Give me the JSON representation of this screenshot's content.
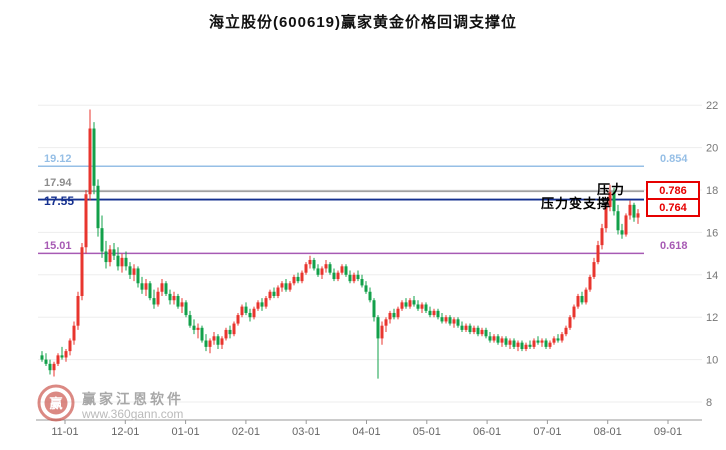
{
  "title": "海立股份(600619)赢家黄金价格回调支撑位",
  "annotations": {
    "pressure": "压力",
    "pressure_support": "压力变支撑"
  },
  "levels": [
    {
      "price": "19.12",
      "value": 19.12,
      "ratio": "0.854",
      "color": "#96bfe6",
      "boxed": false
    },
    {
      "price": "17.94",
      "value": 17.94,
      "ratio": "0.786",
      "color": "#a0a0a0",
      "boxed": true
    },
    {
      "price": "17.55",
      "value": 17.55,
      "ratio": "0.764",
      "color": "#15308f",
      "boxed": true
    },
    {
      "price": "15.01",
      "value": 15.01,
      "ratio": "0.618",
      "color": "#a75ab4",
      "boxed": false
    }
  ],
  "watermark": {
    "brand": "赢家江恩软件",
    "url": "www.360gann.com",
    "logo_glyph": "赢"
  },
  "chart_data": {
    "type": "candlestick",
    "title": "海立股份(600619)赢家黄金价格回调支撑位",
    "symbol": "海立股份",
    "code": "600619",
    "x_labels": [
      "11-01",
      "12-01",
      "01-01",
      "02-01",
      "03-01",
      "04-01",
      "05-01",
      "06-01",
      "07-01",
      "08-01",
      "09-01"
    ],
    "y_ticks": [
      22,
      20,
      18,
      16,
      14,
      12,
      10,
      8
    ],
    "ylim": [
      8,
      24
    ],
    "grid": true,
    "up_color": "#e8352e",
    "down_color": "#12a04a",
    "support_levels": [
      {
        "ratio": 0.854,
        "price": 19.12
      },
      {
        "ratio": 0.786,
        "price": 17.94
      },
      {
        "ratio": 0.764,
        "price": 17.55
      },
      {
        "ratio": 0.618,
        "price": 15.01
      }
    ],
    "candles": [
      [
        10.2,
        10.4,
        9.9,
        10.0
      ],
      [
        10.0,
        10.3,
        9.7,
        9.8
      ],
      [
        9.8,
        10.0,
        9.3,
        9.5
      ],
      [
        9.5,
        9.9,
        9.2,
        9.8
      ],
      [
        9.8,
        10.3,
        9.7,
        10.2
      ],
      [
        10.2,
        10.6,
        10.0,
        10.1
      ],
      [
        10.1,
        10.5,
        9.9,
        10.4
      ],
      [
        10.4,
        11.0,
        10.2,
        10.9
      ],
      [
        10.9,
        11.8,
        10.7,
        11.6
      ],
      [
        11.6,
        13.2,
        11.4,
        13.0
      ],
      [
        13.0,
        15.5,
        12.8,
        15.3
      ],
      [
        15.3,
        18.0,
        15.0,
        17.8
      ],
      [
        17.8,
        21.8,
        17.5,
        20.9
      ],
      [
        20.9,
        21.2,
        17.8,
        18.2
      ],
      [
        18.2,
        18.5,
        15.8,
        16.2
      ],
      [
        16.2,
        16.8,
        14.8,
        15.1
      ],
      [
        15.1,
        15.6,
        14.3,
        14.6
      ],
      [
        14.6,
        15.4,
        14.4,
        15.2
      ],
      [
        15.2,
        15.5,
        14.7,
        14.9
      ],
      [
        14.9,
        15.3,
        14.2,
        14.4
      ],
      [
        14.4,
        15.0,
        14.1,
        14.8
      ],
      [
        14.8,
        15.1,
        14.2,
        14.4
      ],
      [
        14.4,
        14.6,
        13.8,
        14.0
      ],
      [
        14.0,
        14.5,
        13.7,
        14.3
      ],
      [
        14.3,
        14.4,
        13.4,
        13.6
      ],
      [
        13.6,
        13.9,
        13.1,
        13.3
      ],
      [
        13.3,
        13.8,
        13.0,
        13.6
      ],
      [
        13.6,
        13.7,
        12.8,
        12.9
      ],
      [
        12.9,
        13.3,
        12.4,
        12.6
      ],
      [
        12.6,
        13.4,
        12.5,
        13.2
      ],
      [
        13.2,
        13.8,
        13.0,
        13.6
      ],
      [
        13.6,
        13.7,
        13.0,
        13.1
      ],
      [
        13.1,
        13.3,
        12.6,
        12.8
      ],
      [
        12.8,
        13.2,
        12.6,
        13.0
      ],
      [
        13.0,
        13.1,
        12.4,
        12.5
      ],
      [
        12.5,
        12.9,
        12.2,
        12.7
      ],
      [
        12.7,
        12.8,
        12.0,
        12.1
      ],
      [
        12.1,
        12.3,
        11.5,
        11.6
      ],
      [
        11.6,
        11.9,
        11.2,
        11.4
      ],
      [
        11.4,
        11.7,
        11.0,
        11.5
      ],
      [
        11.5,
        11.6,
        10.8,
        10.9
      ],
      [
        10.9,
        11.2,
        10.4,
        10.6
      ],
      [
        10.6,
        11.0,
        10.3,
        10.9
      ],
      [
        10.9,
        11.3,
        10.7,
        11.1
      ],
      [
        11.1,
        11.2,
        10.5,
        10.7
      ],
      [
        10.7,
        11.1,
        10.5,
        11.0
      ],
      [
        11.0,
        11.5,
        10.9,
        11.4
      ],
      [
        11.4,
        11.6,
        11.0,
        11.2
      ],
      [
        11.2,
        11.8,
        11.1,
        11.7
      ],
      [
        11.7,
        12.2,
        11.6,
        12.1
      ],
      [
        12.1,
        12.6,
        12.0,
        12.5
      ],
      [
        12.5,
        12.7,
        12.1,
        12.2
      ],
      [
        12.2,
        12.4,
        11.8,
        12.0
      ],
      [
        12.0,
        12.5,
        11.9,
        12.4
      ],
      [
        12.4,
        12.8,
        12.3,
        12.7
      ],
      [
        12.7,
        12.9,
        12.3,
        12.5
      ],
      [
        12.5,
        13.0,
        12.4,
        12.9
      ],
      [
        12.9,
        13.3,
        12.8,
        13.2
      ],
      [
        13.2,
        13.4,
        12.9,
        13.0
      ],
      [
        13.0,
        13.5,
        12.9,
        13.4
      ],
      [
        13.4,
        13.7,
        13.2,
        13.6
      ],
      [
        13.6,
        13.8,
        13.2,
        13.3
      ],
      [
        13.3,
        13.7,
        13.2,
        13.6
      ],
      [
        13.6,
        14.0,
        13.5,
        13.9
      ],
      [
        13.9,
        14.1,
        13.6,
        13.7
      ],
      [
        13.7,
        14.2,
        13.6,
        14.1
      ],
      [
        14.1,
        14.6,
        14.0,
        14.5
      ],
      [
        14.5,
        14.9,
        14.3,
        14.7
      ],
      [
        14.7,
        14.8,
        14.2,
        14.3
      ],
      [
        14.3,
        14.5,
        13.9,
        14.0
      ],
      [
        14.0,
        14.4,
        13.8,
        14.3
      ],
      [
        14.3,
        14.7,
        14.1,
        14.5
      ],
      [
        14.5,
        14.6,
        14.0,
        14.1
      ],
      [
        14.1,
        14.3,
        13.7,
        13.8
      ],
      [
        13.8,
        14.2,
        13.7,
        14.1
      ],
      [
        14.1,
        14.5,
        14.0,
        14.4
      ],
      [
        14.4,
        14.5,
        13.9,
        14.0
      ],
      [
        14.0,
        14.2,
        13.6,
        13.7
      ],
      [
        13.7,
        14.1,
        13.6,
        14.0
      ],
      [
        14.0,
        14.2,
        13.7,
        13.8
      ],
      [
        13.8,
        14.0,
        13.4,
        13.5
      ],
      [
        13.5,
        13.7,
        13.1,
        13.2
      ],
      [
        13.2,
        13.4,
        12.7,
        12.8
      ],
      [
        12.8,
        12.9,
        11.8,
        12.0
      ],
      [
        12.0,
        12.1,
        9.1,
        11.0
      ],
      [
        11.0,
        11.8,
        10.7,
        11.6
      ],
      [
        11.6,
        12.0,
        11.3,
        11.9
      ],
      [
        11.9,
        12.3,
        11.7,
        12.2
      ],
      [
        12.2,
        12.4,
        11.9,
        12.0
      ],
      [
        12.0,
        12.5,
        11.9,
        12.4
      ],
      [
        12.4,
        12.8,
        12.3,
        12.7
      ],
      [
        12.7,
        12.9,
        12.4,
        12.5
      ],
      [
        12.5,
        12.9,
        12.4,
        12.8
      ],
      [
        12.8,
        13.0,
        12.5,
        12.6
      ],
      [
        12.6,
        12.8,
        12.3,
        12.4
      ],
      [
        12.4,
        12.7,
        12.2,
        12.6
      ],
      [
        12.6,
        12.7,
        12.2,
        12.3
      ],
      [
        12.3,
        12.5,
        12.0,
        12.1
      ],
      [
        12.1,
        12.4,
        12.0,
        12.3
      ],
      [
        12.3,
        12.4,
        11.9,
        12.0
      ],
      [
        12.0,
        12.2,
        11.7,
        11.8
      ],
      [
        11.8,
        12.1,
        11.7,
        12.0
      ],
      [
        12.0,
        12.1,
        11.6,
        11.7
      ],
      [
        11.7,
        12.0,
        11.5,
        11.9
      ],
      [
        11.9,
        12.0,
        11.5,
        11.6
      ],
      [
        11.6,
        11.8,
        11.3,
        11.4
      ],
      [
        11.4,
        11.7,
        11.3,
        11.6
      ],
      [
        11.6,
        11.7,
        11.2,
        11.3
      ],
      [
        11.3,
        11.6,
        11.2,
        11.5
      ],
      [
        11.5,
        11.6,
        11.1,
        11.2
      ],
      [
        11.2,
        11.5,
        11.1,
        11.4
      ],
      [
        11.4,
        11.5,
        11.0,
        11.1
      ],
      [
        11.1,
        11.3,
        10.8,
        10.9
      ],
      [
        10.9,
        11.2,
        10.8,
        11.1
      ],
      [
        11.1,
        11.2,
        10.7,
        10.8
      ],
      [
        10.8,
        11.1,
        10.6,
        11.0
      ],
      [
        11.0,
        11.1,
        10.6,
        10.7
      ],
      [
        10.7,
        11.0,
        10.5,
        10.9
      ],
      [
        10.9,
        11.0,
        10.5,
        10.6
      ],
      [
        10.6,
        10.9,
        10.4,
        10.8
      ],
      [
        10.8,
        10.9,
        10.4,
        10.5
      ],
      [
        10.5,
        10.8,
        10.4,
        10.7
      ],
      [
        10.7,
        10.9,
        10.5,
        10.6
      ],
      [
        10.6,
        11.0,
        10.5,
        10.9
      ],
      [
        10.9,
        11.1,
        10.7,
        10.8
      ],
      [
        10.8,
        11.0,
        10.6,
        10.9
      ],
      [
        10.9,
        11.0,
        10.5,
        10.6
      ],
      [
        10.6,
        10.9,
        10.5,
        10.8
      ],
      [
        10.8,
        11.1,
        10.7,
        11.0
      ],
      [
        11.0,
        11.2,
        10.8,
        10.9
      ],
      [
        10.9,
        11.3,
        10.8,
        11.2
      ],
      [
        11.2,
        11.6,
        11.1,
        11.5
      ],
      [
        11.5,
        12.1,
        11.4,
        12.0
      ],
      [
        12.0,
        12.6,
        11.9,
        12.5
      ],
      [
        12.5,
        13.1,
        12.4,
        13.0
      ],
      [
        13.0,
        13.2,
        12.6,
        12.7
      ],
      [
        12.7,
        13.4,
        12.6,
        13.3
      ],
      [
        13.3,
        14.0,
        13.2,
        13.9
      ],
      [
        13.9,
        14.8,
        13.8,
        14.6
      ],
      [
        14.6,
        15.6,
        14.5,
        15.4
      ],
      [
        15.4,
        16.4,
        15.2,
        16.2
      ],
      [
        16.2,
        17.4,
        16.0,
        17.2
      ],
      [
        17.2,
        18.25,
        17.0,
        17.9
      ],
      [
        17.9,
        18.1,
        16.8,
        17.0
      ],
      [
        17.0,
        17.3,
        15.9,
        16.1
      ],
      [
        16.1,
        16.4,
        15.7,
        15.9
      ],
      [
        15.9,
        16.9,
        15.8,
        16.8
      ],
      [
        16.8,
        17.5,
        16.6,
        17.3
      ],
      [
        17.3,
        17.4,
        16.5,
        16.7
      ],
      [
        16.7,
        17.1,
        16.4,
        16.9
      ]
    ]
  }
}
